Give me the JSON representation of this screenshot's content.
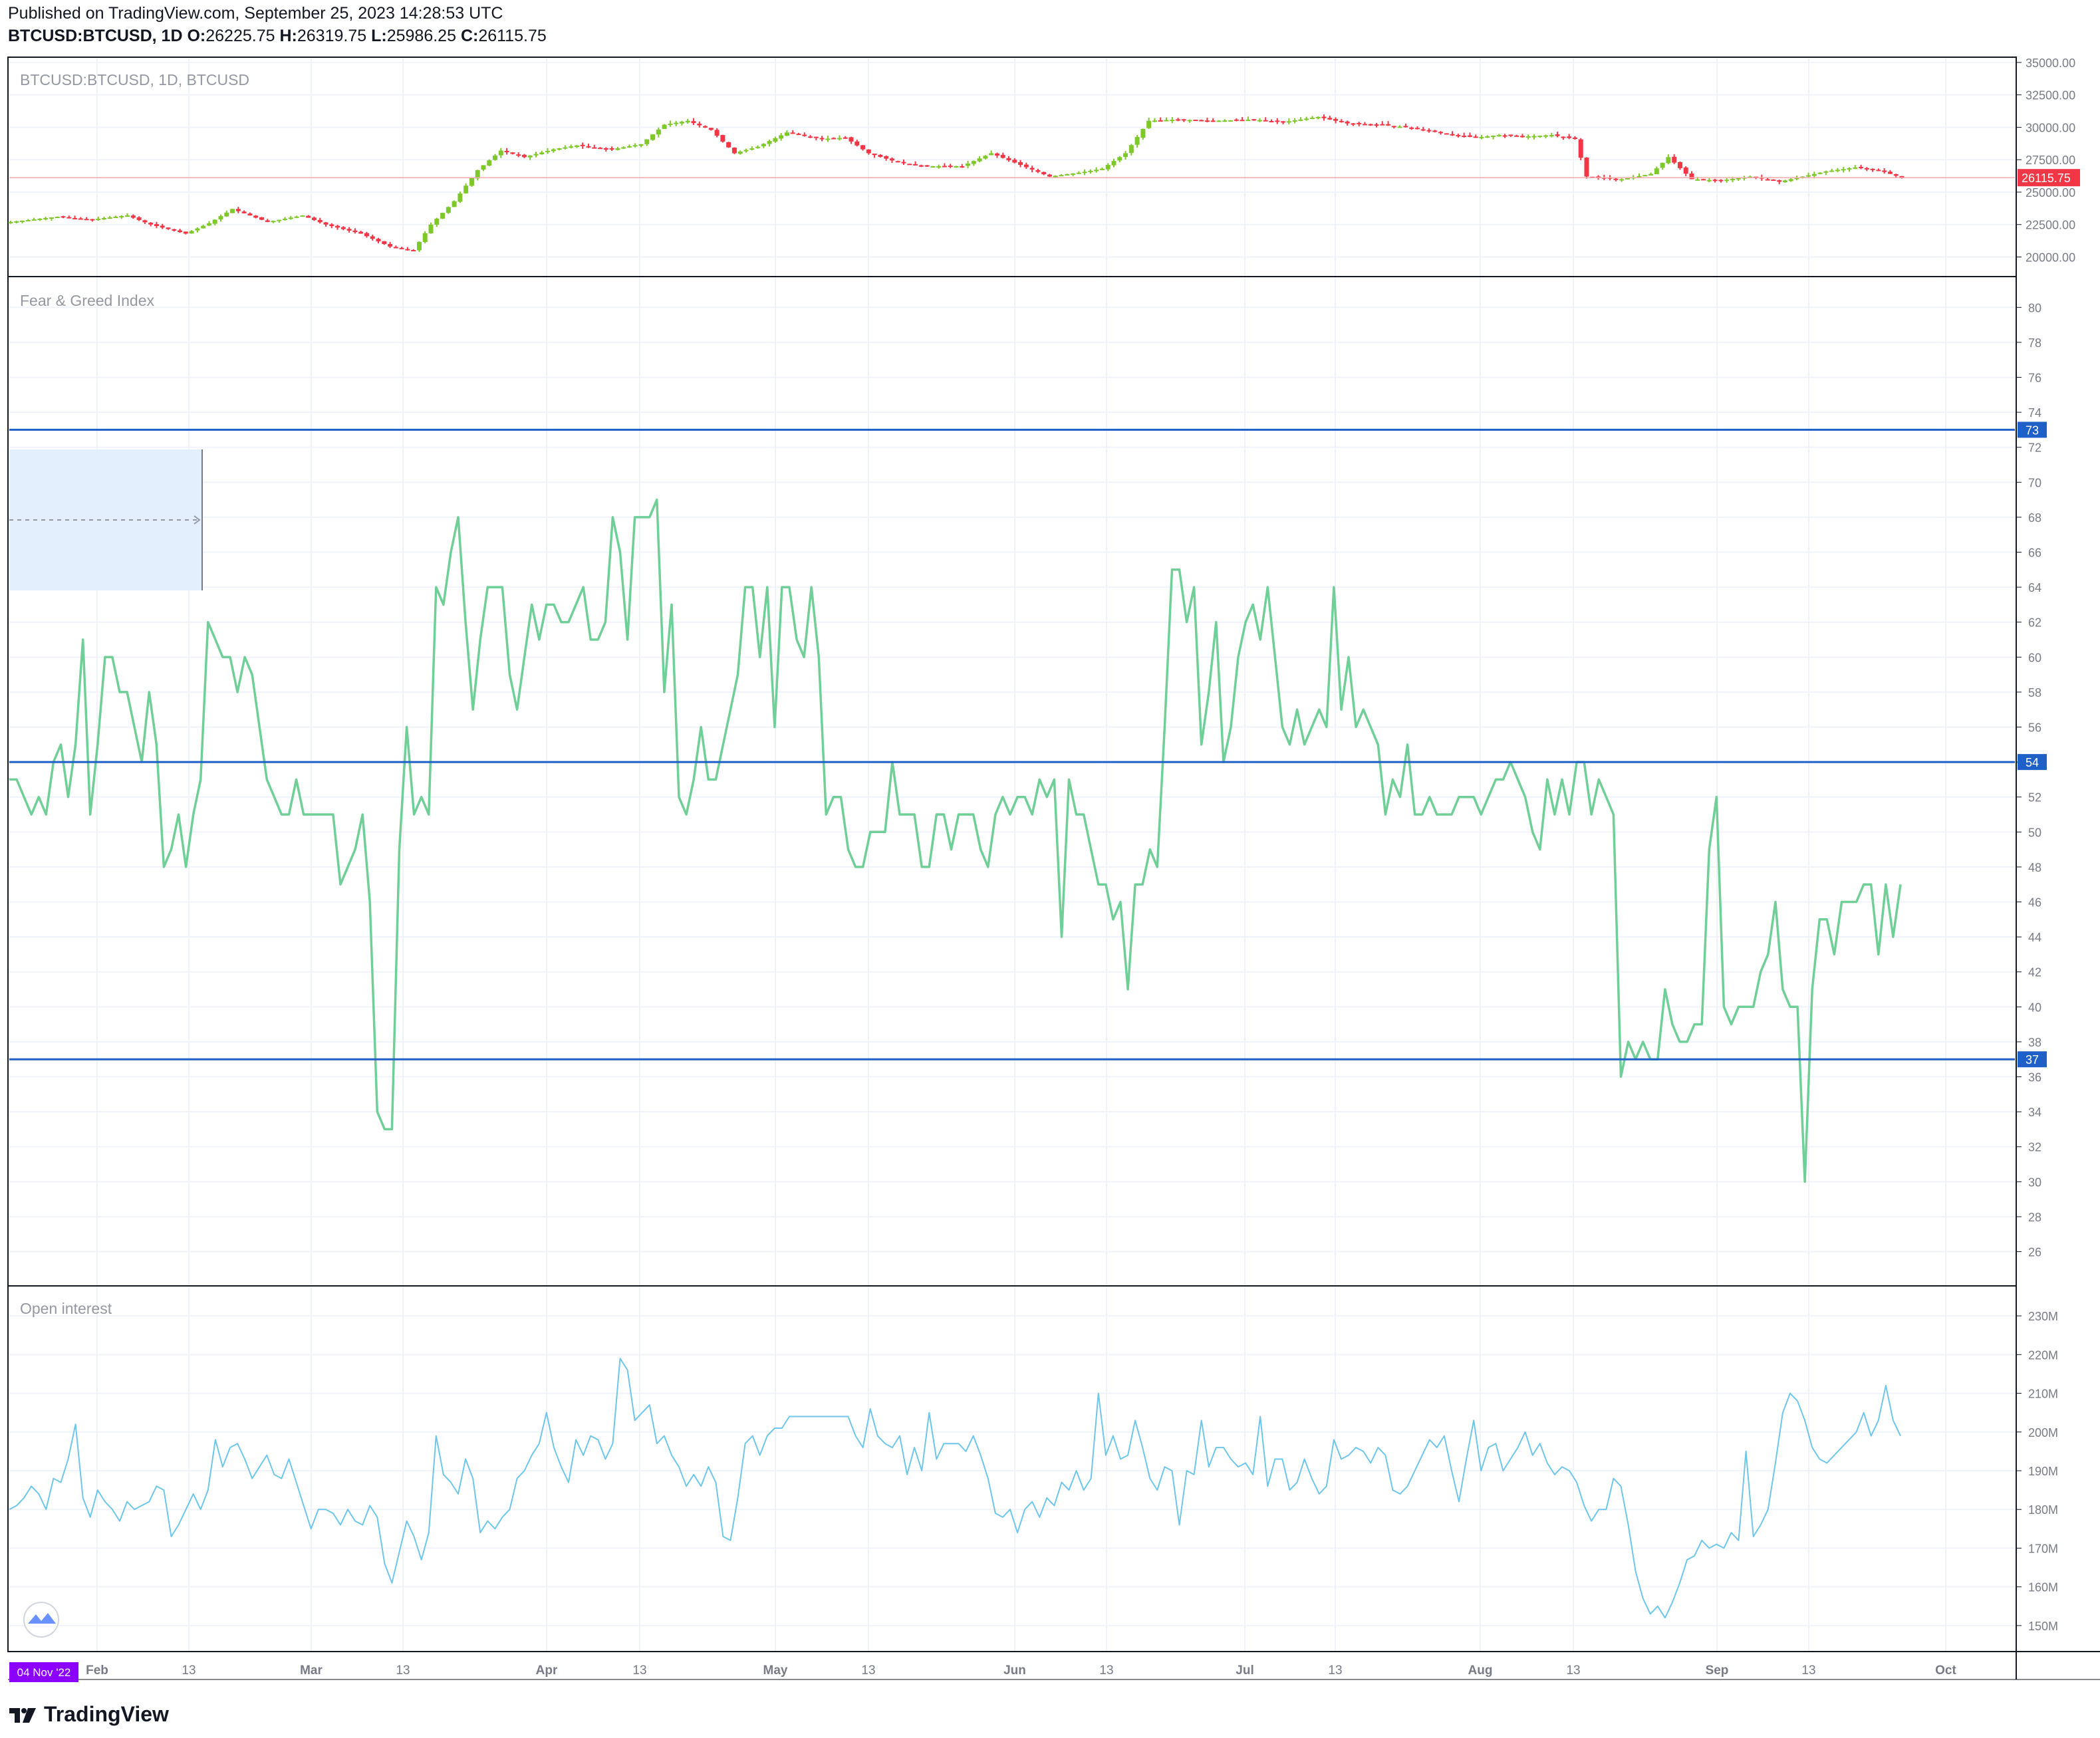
{
  "header": {
    "published": "Published on TradingView.com, September 25, 2023 14:28:53 UTC",
    "symbol": "BTCUSD:BTCUSD, 1D",
    "o_label": "O:",
    "o_value": "26225.75",
    "h_label": "H:",
    "h_value": "26319.75",
    "l_label": "L:",
    "l_value": "25986.25",
    "c_label": "C:",
    "c_value": "26115.75"
  },
  "colors": {
    "up": "#4caf50",
    "up_bright": "#7ec82a",
    "down": "#f23645",
    "fg_line": "#6fcf97",
    "oi_line": "#6ec6ea",
    "hline": "#1f5fc8",
    "price_tag": "#f23645",
    "date_tag": "#8b00ff"
  },
  "footer": {
    "brand": "TradingView",
    "logo_icon": "tradingview-logo-icon"
  },
  "time_axis": {
    "start_badge": "04 Nov '22",
    "ticks": [
      "Feb",
      "13",
      "Mar",
      "13",
      "Apr",
      "13",
      "May",
      "13",
      "Jun",
      "13",
      "Jul",
      "13",
      "Aug",
      "13",
      "Sep",
      "13",
      "Oct"
    ]
  },
  "chart_data": [
    {
      "type": "candlestick",
      "title": "BTCUSD:BTCUSD, 1D, BTCUSD",
      "ylim": [
        19000,
        35200
      ],
      "yticks": [
        "35000.00",
        "32500.00",
        "30000.00",
        "27500.00",
        "25000.00",
        "22500.00",
        "20000.00"
      ],
      "last_price": 26115.75,
      "last_price_label": "26115.75",
      "close_path": [
        [
          0,
          22700
        ],
        [
          8,
          23100
        ],
        [
          14,
          22900
        ],
        [
          20,
          23200
        ],
        [
          24,
          22500
        ],
        [
          30,
          21800
        ],
        [
          34,
          22600
        ],
        [
          38,
          23700
        ],
        [
          44,
          22700
        ],
        [
          50,
          23200
        ],
        [
          54,
          22500
        ],
        [
          60,
          21800
        ],
        [
          65,
          20800
        ],
        [
          69,
          20500
        ],
        [
          72,
          22500
        ],
        [
          76,
          24300
        ],
        [
          80,
          26700
        ],
        [
          84,
          28200
        ],
        [
          88,
          27700
        ],
        [
          93,
          28300
        ],
        [
          97,
          28600
        ],
        [
          103,
          28300
        ],
        [
          108,
          28700
        ],
        [
          112,
          30200
        ],
        [
          116,
          30500
        ],
        [
          120,
          29800
        ],
        [
          124,
          28000
        ],
        [
          128,
          28500
        ],
        [
          133,
          29600
        ],
        [
          139,
          29100
        ],
        [
          143,
          29200
        ],
        [
          147,
          28000
        ],
        [
          152,
          27300
        ],
        [
          157,
          27000
        ],
        [
          163,
          27000
        ],
        [
          168,
          28000
        ],
        [
          173,
          27100
        ],
        [
          178,
          26200
        ],
        [
          183,
          26500
        ],
        [
          187,
          26800
        ],
        [
          191,
          28000
        ],
        [
          195,
          30500
        ],
        [
          200,
          30600
        ],
        [
          206,
          30500
        ],
        [
          213,
          30600
        ],
        [
          218,
          30400
        ],
        [
          224,
          30800
        ],
        [
          229,
          30300
        ],
        [
          235,
          30200
        ],
        [
          241,
          29900
        ],
        [
          246,
          29500
        ],
        [
          251,
          29200
        ],
        [
          255,
          29400
        ],
        [
          260,
          29300
        ],
        [
          264,
          29400
        ],
        [
          268,
          29100
        ],
        [
          270,
          26200
        ],
        [
          276,
          26000
        ],
        [
          281,
          26400
        ],
        [
          284,
          27700
        ],
        [
          288,
          26000
        ],
        [
          293,
          25900
        ],
        [
          298,
          26200
        ],
        [
          303,
          25800
        ],
        [
          307,
          26200
        ],
        [
          311,
          26600
        ],
        [
          316,
          26900
        ],
        [
          320,
          26700
        ],
        [
          324,
          26115
        ]
      ]
    },
    {
      "type": "line",
      "title": "Fear & Greed Index",
      "ylim": [
        24.5,
        81
      ],
      "yticks": [
        80,
        78,
        76,
        74,
        72,
        70,
        68,
        66,
        64,
        62,
        60,
        58,
        56,
        54,
        52,
        50,
        48,
        46,
        44,
        42,
        40,
        38,
        36,
        34,
        32,
        30,
        28,
        26
      ],
      "hlines": [
        73,
        54,
        37
      ],
      "values": [
        53,
        53,
        52,
        51,
        52,
        51,
        54,
        55,
        52,
        55,
        61,
        51,
        55,
        60,
        60,
        58,
        58,
        56,
        54,
        58,
        55,
        48,
        49,
        51,
        48,
        51,
        53,
        62,
        61,
        60,
        60,
        58,
        60,
        59,
        56,
        53,
        52,
        51,
        51,
        53,
        51,
        51,
        51,
        51,
        51,
        47,
        48,
        49,
        51,
        46,
        34,
        33,
        33,
        49,
        56,
        51,
        52,
        51,
        64,
        63,
        66,
        68,
        62,
        57,
        61,
        64,
        64,
        64,
        59,
        57,
        60,
        63,
        61,
        63,
        63,
        62,
        62,
        63,
        64,
        61,
        61,
        62,
        68,
        66,
        61,
        68,
        68,
        68,
        69,
        58,
        63,
        52,
        51,
        53,
        56,
        53,
        53,
        55,
        57,
        59,
        64,
        64,
        60,
        64,
        56,
        64,
        64,
        61,
        60,
        64,
        60,
        51,
        52,
        52,
        49,
        48,
        48,
        50,
        50,
        50,
        54,
        51,
        51,
        51,
        48,
        48,
        51,
        51,
        49,
        51,
        51,
        51,
        49,
        48,
        51,
        52,
        51,
        52,
        52,
        51,
        53,
        52,
        53,
        44,
        53,
        51,
        51,
        49,
        47,
        47,
        45,
        46,
        41,
        47,
        47,
        49,
        48,
        56,
        65,
        65,
        62,
        64,
        55,
        58,
        62,
        54,
        56,
        60,
        62,
        63,
        61,
        64,
        60,
        56,
        55,
        57,
        55,
        56,
        57,
        56,
        64,
        57,
        60,
        56,
        57,
        56,
        55,
        51,
        53,
        52,
        55,
        51,
        51,
        52,
        51,
        51,
        51,
        52,
        52,
        52,
        51,
        52,
        53,
        53,
        54,
        53,
        52,
        50,
        49,
        53,
        51,
        53,
        51,
        54,
        54,
        51,
        53,
        52,
        51,
        36,
        38,
        37,
        38,
        37,
        37,
        41,
        39,
        38,
        38,
        39,
        39,
        49,
        52,
        40,
        39,
        40,
        40,
        40,
        42,
        43,
        46,
        41,
        40,
        40,
        30,
        41,
        45,
        45,
        43,
        46,
        46,
        46,
        47,
        47,
        43,
        47,
        44,
        47
      ]
    },
    {
      "type": "line",
      "title": "Open interest",
      "ylim": [
        145,
        235
      ],
      "yticks": [
        "230M",
        "220M",
        "210M",
        "200M",
        "190M",
        "180M",
        "170M",
        "160M",
        "150M"
      ],
      "values": [
        180,
        181,
        183,
        186,
        184,
        180,
        188,
        187,
        193,
        202,
        183,
        178,
        185,
        182,
        180,
        177,
        182,
        180,
        181,
        182,
        186,
        185,
        173,
        176,
        180,
        184,
        180,
        185,
        198,
        191,
        196,
        197,
        193,
        188,
        191,
        194,
        189,
        188,
        193,
        187,
        181,
        175,
        180,
        180,
        179,
        176,
        180,
        177,
        176,
        181,
        178,
        166,
        161,
        169,
        177,
        173,
        167,
        174,
        199,
        189,
        187,
        184,
        193,
        188,
        174,
        177,
        175,
        178,
        180,
        188,
        190,
        194,
        197,
        205,
        196,
        191,
        187,
        198,
        194,
        199,
        198,
        193,
        197,
        219,
        216,
        203,
        205,
        207,
        197,
        199,
        194,
        191,
        186,
        189,
        186,
        191,
        187,
        173,
        172,
        183,
        197,
        199,
        194,
        199,
        201,
        201,
        204,
        204,
        204,
        204,
        204,
        204,
        204,
        204,
        204,
        199,
        196,
        206,
        199,
        197,
        196,
        199,
        189,
        196,
        190,
        205,
        193,
        197,
        197,
        197,
        195,
        199,
        194,
        188,
        179,
        178,
        180,
        174,
        180,
        182,
        178,
        183,
        181,
        187,
        185,
        190,
        185,
        188,
        210,
        194,
        199,
        193,
        194,
        203,
        196,
        188,
        185,
        191,
        190,
        176,
        190,
        189,
        203,
        191,
        196,
        196,
        193,
        191,
        192,
        189,
        204,
        186,
        193,
        193,
        185,
        187,
        193,
        188,
        184,
        186,
        198,
        193,
        194,
        196,
        195,
        192,
        196,
        194,
        185,
        184,
        186,
        190,
        194,
        198,
        196,
        199,
        190,
        182,
        193,
        203,
        190,
        196,
        197,
        190,
        193,
        196,
        200,
        194,
        197,
        192,
        189,
        191,
        190,
        187,
        181,
        177,
        180,
        180,
        188,
        186,
        176,
        164,
        157,
        153,
        155,
        152,
        156,
        161,
        167,
        168,
        172,
        170,
        171,
        170,
        174,
        172,
        195,
        173,
        176,
        180,
        192,
        205,
        210,
        208,
        203,
        196,
        193,
        192,
        194,
        196,
        198,
        200,
        205,
        199,
        203,
        212,
        203,
        199
      ]
    }
  ]
}
